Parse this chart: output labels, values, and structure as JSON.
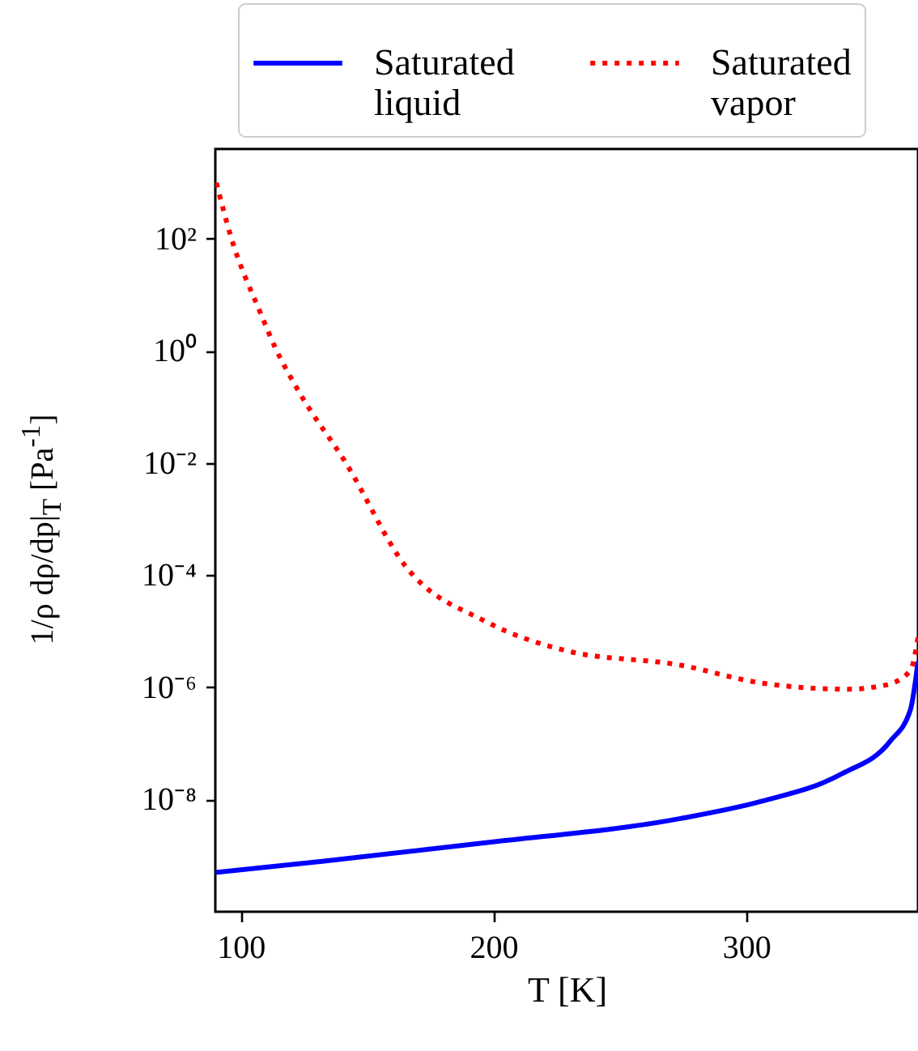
{
  "chart_data": {
    "type": "line",
    "xlabel": "T [K]",
    "ylabel": "1/ρ dρ/dp|$_{T}$ [Pa$^{-1}$]",
    "log": "y",
    "grid": false,
    "legend": "top right",
    "marker": "none",
    "xlim": [
      90,
      368
    ],
    "xticks": [
      100,
      200,
      300
    ],
    "ylim": [
      1e-10,
      4000
    ],
    "yticks": [
      {
        "value": 1e-08,
        "label": "10⁻⁸"
      },
      {
        "value": 1e-06,
        "label": "10⁻⁶"
      },
      {
        "value": 0.0001,
        "label": "10⁻⁴"
      },
      {
        "value": 0.01,
        "label": "10⁻²"
      },
      {
        "value": 1,
        "label": "10⁰"
      },
      {
        "value": 100,
        "label": "10²"
      }
    ],
    "series": [
      {
        "name": "Saturated liquid",
        "color": "#0000ff",
        "line_style": "solid",
        "x": [
          90,
          133,
          197,
          274,
          306,
          338,
          357,
          365,
          368
        ],
        "values": [
          5e-10,
          8e-10,
          1.7e-09,
          4.6e-09,
          9.3e-09,
          2.9e-08,
          1.1e-07,
          4e-07,
          2.9e-06
        ]
      },
      {
        "name": "Saturated vapor",
        "color": "#ff0000",
        "line_style": "dotted",
        "x": [
          90.4,
          96,
          108,
          113.5,
          123,
          141.7,
          165,
          197,
          229,
          274,
          306,
          340,
          355,
          365,
          368
        ],
        "values": [
          1000,
          115,
          4.6,
          1.2,
          0.19,
          0.01,
          0.00015,
          1.5e-05,
          4.5e-06,
          2.5e-06,
          1.2e-06,
          9.3e-07,
          1.1e-06,
          2e-06,
          7.9e-06
        ]
      }
    ]
  }
}
